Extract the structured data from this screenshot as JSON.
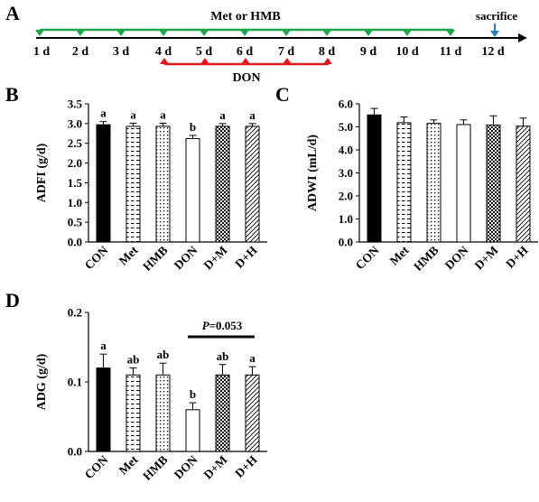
{
  "panels": {
    "A": "A",
    "B": "B",
    "C": "C",
    "D": "D"
  },
  "timeline": {
    "days": [
      "1 d",
      "2 d",
      "3 d",
      "4 d",
      "5 d",
      "6 d",
      "7 d",
      "8 d",
      "9 d",
      "10 d",
      "11 d",
      "12 d"
    ],
    "met_hmb_label": "Met or HMB",
    "don_label": "DON",
    "sacrifice_label": "sacrifice",
    "colors": {
      "met_hmb": "#1aa64a",
      "don": "#e0191e",
      "sacrifice": "#2a7ac0"
    }
  },
  "chart_data": [
    {
      "id": "B",
      "type": "bar",
      "ylabel": "ADFI (g/d)",
      "ylim": [
        0,
        3.5
      ],
      "yticks": [
        "0.0",
        "0.5",
        "1.0",
        "1.5",
        "2.0",
        "2.5",
        "3.0",
        "3.5"
      ],
      "categories": [
        "CON",
        "Met",
        "HMB",
        "DON",
        "D+M",
        "D+H"
      ],
      "values": [
        2.97,
        2.93,
        2.93,
        2.62,
        2.93,
        2.93
      ],
      "errors": [
        0.08,
        0.08,
        0.08,
        0.08,
        0.07,
        0.07
      ],
      "letters": [
        "a",
        "a",
        "a",
        "b",
        "a",
        "a"
      ],
      "patterns": [
        "solid",
        "dashes",
        "dots",
        "empty",
        "checker",
        "diagonal"
      ]
    },
    {
      "id": "C",
      "type": "bar",
      "ylabel": "ADWI (mL/d)",
      "ylim": [
        0,
        6.0
      ],
      "yticks": [
        "0.0",
        "1.0",
        "2.0",
        "3.0",
        "4.0",
        "5.0",
        "6.0"
      ],
      "categories": [
        "CON",
        "Met",
        "HMB",
        "DON",
        "D+M",
        "D+H"
      ],
      "values": [
        5.52,
        5.18,
        5.15,
        5.1,
        5.08,
        5.03
      ],
      "errors": [
        0.28,
        0.25,
        0.15,
        0.2,
        0.4,
        0.35
      ],
      "letters": [],
      "patterns": [
        "solid",
        "dashes",
        "dots",
        "empty",
        "checker",
        "diagonal"
      ]
    },
    {
      "id": "D",
      "type": "bar",
      "ylabel": "ADG (g/d)",
      "ylim": [
        0,
        0.2
      ],
      "yticks": [
        "0.0",
        "0.1",
        "0.2"
      ],
      "categories": [
        "CON",
        "Met",
        "HMB",
        "DON",
        "D+M",
        "D+H"
      ],
      "values": [
        0.12,
        0.11,
        0.11,
        0.06,
        0.11,
        0.11
      ],
      "errors": [
        0.02,
        0.01,
        0.017,
        0.01,
        0.015,
        0.012
      ],
      "letters": [
        "a",
        "ab",
        "ab",
        "b",
        "ab",
        "a"
      ],
      "patterns": [
        "solid",
        "dashes",
        "dots",
        "empty",
        "checker",
        "diagonal"
      ],
      "annotation": {
        "p_label": "P",
        "p_value": "=0.053"
      }
    }
  ]
}
